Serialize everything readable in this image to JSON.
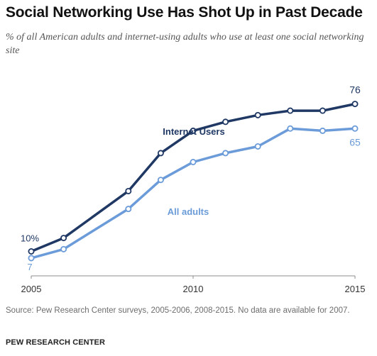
{
  "header": {
    "title": "Social Networking Use Has Shot Up in Past Decade",
    "subtitle": "% of all American adults and internet-using adults who use at least one social networking site"
  },
  "footer": {
    "source": "Source: Pew Research Center surveys, 2005-2006, 2008-2015. No data are available for 2007.",
    "brand": "PEW RESEARCH CENTER"
  },
  "colors": {
    "internet_users": "#1f3864",
    "all_adults": "#6b9bd8",
    "axis": "#8c8c8c",
    "text": "#222222"
  },
  "chart_data": {
    "type": "line",
    "title": "Social Networking Use Has Shot Up in Past Decade",
    "subtitle": "% of all American adults and internet-using adults who use at least one social networking site",
    "xlabel": "",
    "ylabel": "",
    "xlim": [
      2005,
      2015
    ],
    "ylim": [
      0,
      80
    ],
    "x_ticks": [
      "2005",
      "2010",
      "2015"
    ],
    "grid": false,
    "legend": "inline labels",
    "series": [
      {
        "name": "Internet Users",
        "color": "#1f3864",
        "x": [
          2005,
          2006,
          2008,
          2009,
          2010,
          2011,
          2012,
          2013,
          2014,
          2015
        ],
        "values": [
          10,
          16,
          37,
          54,
          64,
          68,
          71,
          73,
          73,
          76
        ],
        "start_label": "10%",
        "end_label": "76"
      },
      {
        "name": "All adults",
        "color": "#6b9bd8",
        "x": [
          2005,
          2006,
          2008,
          2009,
          2010,
          2011,
          2012,
          2013,
          2014,
          2015
        ],
        "values": [
          7,
          11,
          29,
          42,
          50,
          54,
          57,
          65,
          64,
          65
        ],
        "start_label": "7",
        "end_label": "65"
      }
    ]
  }
}
